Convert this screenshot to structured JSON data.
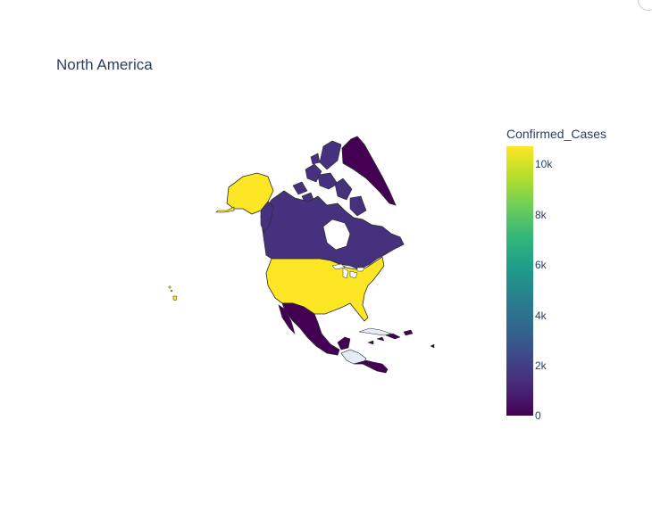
{
  "title": "North America",
  "colorbar": {
    "title": "Confirmed_Cases",
    "ticks": [
      "0",
      "2k",
      "4k",
      "6k",
      "8k",
      "10k"
    ],
    "colorscale": [
      "#440154",
      "#482878",
      "#3e4989",
      "#31688e",
      "#26828e",
      "#1f9e89",
      "#35b779",
      "#6ece58",
      "#b5de2b",
      "#fde725"
    ]
  },
  "map": {
    "projection": "orthographic",
    "region": "North America",
    "no_data_color": "#e5ecf6",
    "regions": [
      {
        "name": "United States",
        "level": "high",
        "color": "#fde725"
      },
      {
        "name": "Alaska",
        "level": "high",
        "color": "#fde725"
      },
      {
        "name": "Canada",
        "level": "low",
        "color": "#46317e"
      },
      {
        "name": "Greenland",
        "level": "zero",
        "color": "#440154"
      },
      {
        "name": "Mexico",
        "level": "zero",
        "color": "#440154"
      },
      {
        "name": "Cuba",
        "level": "zero",
        "color": "#440154"
      },
      {
        "name": "Central America",
        "level": "zero",
        "color": "#440154"
      },
      {
        "name": "Guatemala/Honduras",
        "level": "no-data",
        "color": "#e5ecf6"
      }
    ]
  }
}
